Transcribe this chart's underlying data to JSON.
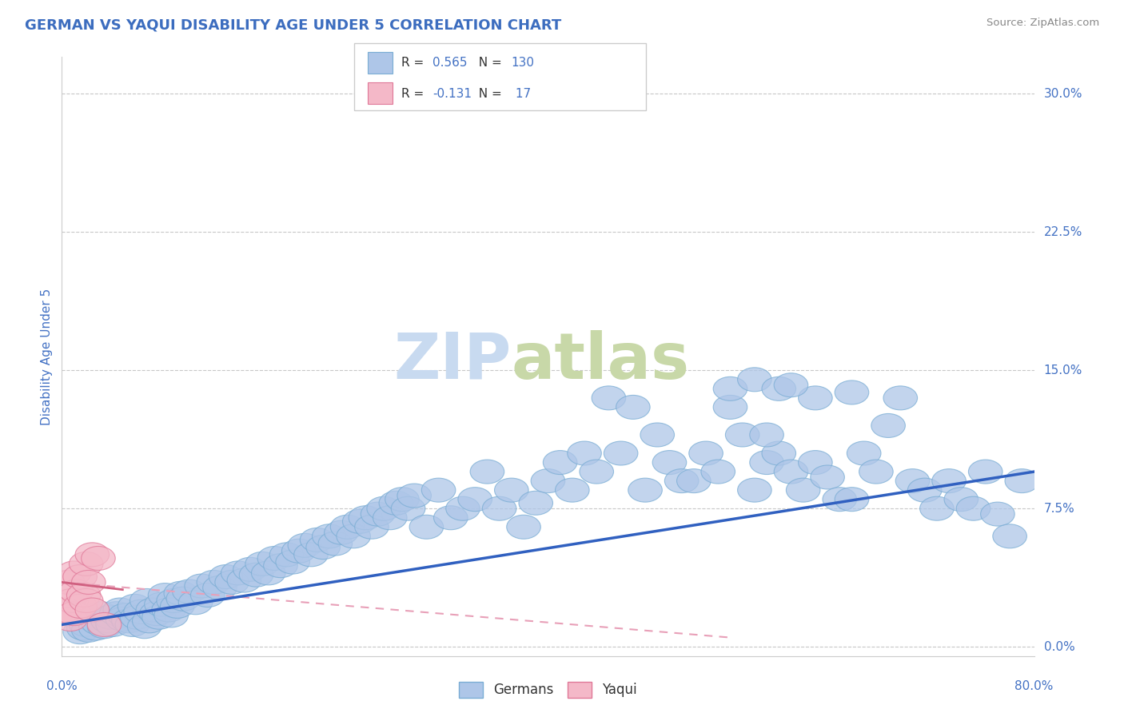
{
  "title": "GERMAN VS YAQUI DISABILITY AGE UNDER 5 CORRELATION CHART",
  "source": "Source: ZipAtlas.com",
  "ylabel": "Disability Age Under 5",
  "ytick_labels": [
    "0.0%",
    "7.5%",
    "15.0%",
    "22.5%",
    "30.0%"
  ],
  "ytick_values": [
    0.0,
    7.5,
    15.0,
    22.5,
    30.0
  ],
  "xlim": [
    0.0,
    80.0
  ],
  "ylim": [
    -0.5,
    32.0
  ],
  "title_color": "#3c6dbf",
  "source_color": "#888888",
  "axis_label_color": "#4472c4",
  "scatter_blue_face": "#aec6e8",
  "scatter_blue_edge": "#7aadd4",
  "scatter_pink_face": "#f4b8c8",
  "scatter_pink_edge": "#e07898",
  "line_blue_color": "#3060c0",
  "line_pink_solid_color": "#d06080",
  "line_pink_dashed_color": "#e8a0b8",
  "background_color": "#ffffff",
  "grid_color": "#c8c8c8",
  "legend_text_color": "#4472c4",
  "watermark_zip_color": "#c8daf0",
  "watermark_atlas_color": "#c8d8a8",
  "german_x": [
    1.5,
    1.8,
    2.0,
    2.2,
    2.5,
    2.8,
    3.0,
    3.2,
    3.5,
    3.8,
    4.0,
    4.2,
    4.5,
    4.8,
    5.0,
    5.2,
    5.5,
    5.8,
    6.0,
    6.2,
    6.5,
    6.8,
    7.0,
    7.2,
    7.5,
    7.8,
    8.0,
    8.2,
    8.5,
    8.8,
    9.0,
    9.2,
    9.5,
    9.8,
    10.0,
    10.5,
    11.0,
    11.5,
    12.0,
    12.5,
    13.0,
    13.5,
    14.0,
    14.5,
    15.0,
    15.5,
    16.0,
    16.5,
    17.0,
    17.5,
    18.0,
    18.5,
    19.0,
    19.5,
    20.0,
    20.5,
    21.0,
    21.5,
    22.0,
    22.5,
    23.0,
    23.5,
    24.0,
    24.5,
    25.0,
    25.5,
    26.0,
    26.5,
    27.0,
    27.5,
    28.0,
    28.5,
    29.0,
    30.0,
    31.0,
    32.0,
    33.0,
    34.0,
    35.0,
    36.0,
    37.0,
    38.0,
    39.0,
    40.0,
    41.0,
    42.0,
    43.0,
    44.0,
    45.0,
    46.0,
    47.0,
    48.0,
    49.0,
    50.0,
    51.0,
    52.0,
    53.0,
    54.0,
    55.0,
    56.0,
    57.0,
    58.0,
    59.0,
    60.0,
    61.0,
    62.0,
    63.0,
    64.0,
    65.0,
    66.0,
    67.0,
    68.0,
    69.0,
    70.0,
    71.0,
    72.0,
    73.0,
    74.0,
    75.0,
    76.0,
    77.0,
    78.0,
    79.0,
    55.0,
    57.0,
    59.0,
    62.0,
    65.0,
    60.0,
    58.0
  ],
  "german_y": [
    0.8,
    1.0,
    1.2,
    0.9,
    1.5,
    1.0,
    1.3,
    1.8,
    1.1,
    1.4,
    1.6,
    1.2,
    1.8,
    2.0,
    1.5,
    1.7,
    1.4,
    1.2,
    2.2,
    1.6,
    1.9,
    1.1,
    2.5,
    1.4,
    2.0,
    1.8,
    1.6,
    2.3,
    2.8,
    2.0,
    1.7,
    2.5,
    2.2,
    2.9,
    2.6,
    3.0,
    2.4,
    3.3,
    2.8,
    3.5,
    3.2,
    3.8,
    3.5,
    4.0,
    3.6,
    4.2,
    3.9,
    4.5,
    4.0,
    4.8,
    4.4,
    5.0,
    4.6,
    5.2,
    5.5,
    5.0,
    5.8,
    5.4,
    6.0,
    5.6,
    6.2,
    6.5,
    6.0,
    6.8,
    7.0,
    6.5,
    7.2,
    7.5,
    7.0,
    7.8,
    8.0,
    7.5,
    8.2,
    6.5,
    8.5,
    7.0,
    7.5,
    8.0,
    9.5,
    7.5,
    8.5,
    6.5,
    7.8,
    9.0,
    10.0,
    8.5,
    10.5,
    9.5,
    13.5,
    10.5,
    13.0,
    8.5,
    11.5,
    10.0,
    9.0,
    9.0,
    10.5,
    9.5,
    13.0,
    11.5,
    8.5,
    10.0,
    10.5,
    9.5,
    8.5,
    10.0,
    9.2,
    8.0,
    8.0,
    10.5,
    9.5,
    12.0,
    13.5,
    9.0,
    8.5,
    7.5,
    9.0,
    8.0,
    7.5,
    9.5,
    7.2,
    6.0,
    9.0,
    14.0,
    14.5,
    14.0,
    13.5,
    13.8,
    14.2,
    11.5
  ],
  "yaqui_x": [
    0.3,
    0.5,
    0.7,
    0.8,
    1.0,
    1.0,
    1.2,
    1.5,
    1.5,
    1.8,
    2.0,
    2.0,
    2.2,
    2.5,
    2.5,
    3.0,
    3.5
  ],
  "yaqui_y": [
    2.0,
    3.5,
    1.5,
    2.5,
    4.0,
    1.8,
    3.0,
    3.8,
    2.2,
    2.8,
    4.5,
    2.5,
    3.5,
    5.0,
    2.0,
    4.8,
    1.2
  ],
  "german_line_x0": 0.0,
  "german_line_y0": 1.2,
  "german_line_x1": 80.0,
  "german_line_y1": 9.5,
  "pink_solid_x0": 0.0,
  "pink_solid_y0": 3.5,
  "pink_solid_x1": 5.0,
  "pink_solid_y1": 3.1,
  "pink_dashed_x0": 0.0,
  "pink_dashed_y0": 3.5,
  "pink_dashed_x1": 55.0,
  "pink_dashed_y1": 0.5
}
